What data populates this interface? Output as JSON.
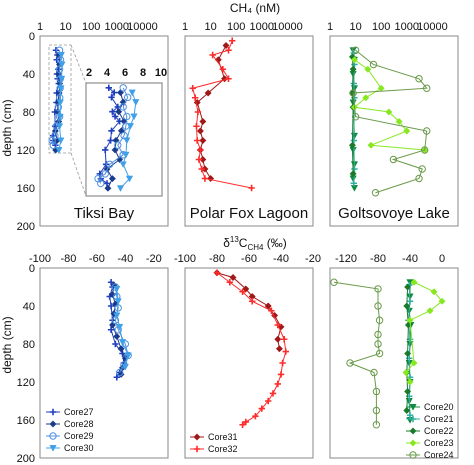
{
  "top_axis_title": "CH₄ (nM)",
  "bottom_axis_title_parts": {
    "delta": "δ",
    "sup": "13",
    "c": "C",
    "sub": "CH4",
    "unit": " (‰)"
  },
  "ylabel": "depth (cm)",
  "panel_titles": [
    "Tiksi Bay",
    "Polar Fox Lagoon",
    "Goltsovoye Lake"
  ],
  "inset_ticks": [
    "2",
    "4",
    "6",
    "8",
    "10"
  ],
  "top_xticks": [
    "1",
    "10",
    "100",
    "1000",
    "10000"
  ],
  "bottom_xticks_left": [
    "-100",
    "-80",
    "-60",
    "-40",
    "-20"
  ],
  "bottom_xticks_mid": [
    "-100",
    "-80",
    "-60",
    "-40",
    "-20"
  ],
  "bottom_xticks_right": [
    "-120",
    "-80",
    "-40",
    "0"
  ],
  "yticks": [
    "0",
    "40",
    "80",
    "120",
    "160",
    "200"
  ],
  "colors": {
    "Core27": "#1f3fbf",
    "Core28": "#1a3a8a",
    "Core29": "#4f8fdf",
    "Core30": "#3fa0e8",
    "Core31": "#a01818",
    "Core32": "#ff2a2a",
    "Core20": "#0e8a3e",
    "Core21": "#2fb0a0",
    "Core22": "#1a7a2a",
    "Core23": "#88e820",
    "Core24": "#6a9a4a"
  },
  "chart_data": [
    {
      "type": "line",
      "title": "Tiksi Bay",
      "xlabel": "CH₄ (nM)",
      "xscale": "log",
      "xlim": [
        1,
        100000
      ],
      "ylabel": "depth (cm)",
      "ylim": [
        200,
        0
      ],
      "series": [
        {
          "name": "Core27",
          "marker": "plus",
          "points": [
            [
              4.2,
              15
            ],
            [
              4.8,
              20
            ],
            [
              4.5,
              25
            ],
            [
              5.2,
              35
            ],
            [
              4.6,
              40
            ],
            [
              4.9,
              45
            ],
            [
              5.4,
              50
            ],
            [
              4.5,
              60
            ],
            [
              4.4,
              70
            ],
            [
              3.8,
              80
            ],
            [
              3.9,
              95
            ],
            [
              3.2,
              105
            ],
            [
              3.3,
              110
            ],
            [
              4.0,
              115
            ]
          ]
        },
        {
          "name": "Core28",
          "marker": "diamond",
          "points": [
            [
              5.5,
              20
            ],
            [
              5.8,
              30
            ],
            [
              5.3,
              40
            ],
            [
              5.9,
              50
            ],
            [
              5.6,
              60
            ],
            [
              5.0,
              70
            ],
            [
              4.9,
              80
            ],
            [
              5.4,
              90
            ],
            [
              4.0,
              100
            ],
            [
              4.6,
              110
            ],
            [
              4.1,
              120
            ]
          ]
        },
        {
          "name": "Core29",
          "marker": "circle",
          "points": [
            [
              5.8,
              15
            ],
            [
              6.3,
              25
            ],
            [
              5.8,
              35
            ],
            [
              6.2,
              45
            ],
            [
              6.1,
              55
            ],
            [
              5.9,
              65
            ],
            [
              5.2,
              75
            ],
            [
              5.8,
              85
            ],
            [
              4.3,
              95
            ],
            [
              3.8,
              105
            ],
            [
              3.0,
              110
            ],
            [
              3.3,
              115
            ]
          ]
        },
        {
          "name": "Core30",
          "marker": "triangle",
          "points": [
            [
              6.8,
              20
            ],
            [
              7.2,
              30
            ],
            [
              7.0,
              45
            ],
            [
              6.6,
              55
            ],
            [
              6.2,
              70
            ],
            [
              6.1,
              85
            ],
            [
              5.8,
              95
            ],
            [
              6.5,
              110
            ],
            [
              5.5,
              120
            ]
          ]
        }
      ]
    },
    {
      "type": "line",
      "title": "Polar Fox Lagoon",
      "xlabel": "CH₄ (nM)",
      "xscale": "log",
      "xlim": [
        1,
        100000
      ],
      "ylabel": "depth (cm)",
      "ylim": [
        200,
        0
      ],
      "series": [
        {
          "name": "Core31",
          "marker": "diamond",
          "points": [
            [
              40,
              10
            ],
            [
              20,
              25
            ],
            [
              35,
              45
            ],
            [
              8,
              60
            ],
            [
              3,
              70
            ],
            [
              5,
              90
            ],
            [
              4,
              100
            ],
            [
              5,
              110
            ],
            [
              4,
              120
            ],
            [
              5,
              130
            ],
            [
              6,
              140
            ],
            [
              10,
              150
            ]
          ]
        },
        {
          "name": "Core32",
          "marker": "plus",
          "points": [
            [
              70,
              5
            ],
            [
              50,
              15
            ],
            [
              12,
              20
            ],
            [
              30,
              35
            ],
            [
              50,
              45
            ],
            [
              2,
              55
            ],
            [
              2.5,
              65
            ],
            [
              3.2,
              80
            ],
            [
              2.8,
              95
            ],
            [
              3,
              110
            ],
            [
              4,
              120
            ],
            [
              3.5,
              130
            ],
            [
              4.5,
              140
            ],
            [
              6,
              150
            ],
            [
              400,
              160
            ]
          ]
        }
      ]
    },
    {
      "type": "line",
      "title": "Goltsovoye Lake",
      "xlabel": "CH₄ (nM)",
      "xscale": "log",
      "xlim": [
        1,
        100000
      ],
      "ylabel": "depth (cm)",
      "ylim": [
        200,
        0
      ],
      "series": [
        {
          "name": "Core20",
          "marker": "triangle",
          "points": [
            [
              8,
              15
            ],
            [
              9,
              25
            ],
            [
              8,
              40
            ],
            [
              9,
              55
            ],
            [
              8,
              70
            ],
            [
              9,
              105
            ],
            [
              8,
              120
            ],
            [
              9,
              135
            ],
            [
              8,
              150
            ],
            [
              9,
              160
            ]
          ]
        },
        {
          "name": "Core21",
          "marker": "plus",
          "points": [
            [
              8.5,
              18
            ],
            [
              9,
              30
            ],
            [
              8.5,
              50
            ],
            [
              9,
              65
            ],
            [
              8.5,
              110
            ],
            [
              9,
              140
            ],
            [
              8.5,
              155
            ]
          ]
        },
        {
          "name": "Core22",
          "marker": "diamond",
          "points": [
            [
              7.5,
              22
            ],
            [
              8,
              35
            ],
            [
              7.5,
              60
            ],
            [
              8,
              75
            ],
            [
              7.5,
              115
            ],
            [
              8,
              145
            ]
          ]
        },
        {
          "name": "Core23",
          "marker": "diamond",
          "points": [
            [
              9,
              25
            ],
            [
              30,
              35
            ],
            [
              100,
              55
            ],
            [
              25,
              65
            ],
            [
              9,
              75
            ],
            [
              200,
              80
            ],
            [
              500,
              90
            ],
            [
              1000,
              100
            ],
            [
              40,
              115
            ],
            [
              5000,
              120
            ]
          ]
        },
        {
          "name": "Core24",
          "marker": "circle",
          "points": [
            [
              10,
              15
            ],
            [
              50,
              30
            ],
            [
              3000,
              45
            ],
            [
              6000,
              55
            ],
            [
              8,
              60
            ],
            [
              10,
              85
            ],
            [
              6000,
              100
            ],
            [
              5000,
              120
            ],
            [
              300,
              130
            ],
            [
              4000,
              140
            ],
            [
              3000,
              150
            ],
            [
              60,
              165
            ]
          ]
        }
      ]
    },
    {
      "type": "line",
      "title": "",
      "xlabel": "δ¹³C-CH4 (‰)",
      "xlim": [
        -100,
        -10
      ],
      "ylabel": "depth (cm)",
      "ylim": [
        200,
        0
      ],
      "series": [
        {
          "name": "Core27",
          "marker": "plus",
          "points": [
            [
              -50,
              15
            ],
            [
              -49,
              20
            ],
            [
              -51,
              30
            ],
            [
              -50,
              40
            ],
            [
              -49,
              55
            ],
            [
              -50,
              65
            ],
            [
              -47,
              80
            ],
            [
              -42,
              90
            ],
            [
              -41,
              100
            ],
            [
              -44,
              110
            ],
            [
              -46,
              115
            ]
          ]
        },
        {
          "name": "Core28",
          "marker": "diamond",
          "points": [
            [
              -48,
              18
            ],
            [
              -49,
              28
            ],
            [
              -47,
              38
            ],
            [
              -48,
              48
            ],
            [
              -49,
              60
            ],
            [
              -46,
              72
            ],
            [
              -43,
              85
            ],
            [
              -40,
              95
            ],
            [
              -42,
              105
            ],
            [
              -43,
              112
            ]
          ]
        },
        {
          "name": "Core29",
          "marker": "circle",
          "points": [
            [
              -47,
              20
            ],
            [
              -46,
              30
            ],
            [
              -45,
              42
            ],
            [
              -47,
              55
            ],
            [
              -45,
              65
            ],
            [
              -40,
              80
            ],
            [
              -38,
              92
            ],
            [
              -41,
              102
            ],
            [
              -44,
              110
            ]
          ]
        },
        {
          "name": "Core30",
          "marker": "triangle",
          "points": [
            [
              -46,
              22
            ],
            [
              -45,
              35
            ],
            [
              -46,
              50
            ],
            [
              -44,
              62
            ],
            [
              -42,
              78
            ],
            [
              -38,
              92
            ],
            [
              -40,
              104
            ]
          ]
        }
      ]
    },
    {
      "type": "line",
      "title": "",
      "xlabel": "δ¹³C-CH4 (‰)",
      "xlim": [
        -100,
        -20
      ],
      "ylabel": "depth (cm)",
      "ylim": [
        200,
        0
      ],
      "series": [
        {
          "name": "Core31",
          "marker": "diamond",
          "points": [
            [
              -80,
              5
            ],
            [
              -70,
              10
            ],
            [
              -62,
              22
            ],
            [
              -58,
              30
            ],
            [
              -48,
              40
            ],
            [
              -44,
              50
            ],
            [
              -40,
              62
            ],
            [
              -42,
              75
            ],
            [
              -41,
              85
            ]
          ]
        },
        {
          "name": "Core32",
          "marker": "plus",
          "points": [
            [
              -80,
              5
            ],
            [
              -72,
              15
            ],
            [
              -64,
              25
            ],
            [
              -58,
              35
            ],
            [
              -46,
              45
            ],
            [
              -42,
              60
            ],
            [
              -38,
              75
            ],
            [
              -37,
              88
            ],
            [
              -39,
              100
            ],
            [
              -40,
              112
            ],
            [
              -42,
              122
            ],
            [
              -45,
              132
            ],
            [
              -48,
              140
            ],
            [
              -52,
              148
            ],
            [
              -56,
              156
            ],
            [
              -62,
              162
            ],
            [
              -64,
              165
            ]
          ]
        }
      ]
    },
    {
      "type": "line",
      "title": "",
      "xlabel": "δ¹³C-CH4 (‰)",
      "xlim": [
        -140,
        20
      ],
      "ylabel": "depth (cm)",
      "ylim": [
        200,
        0
      ],
      "series": [
        {
          "name": "Core20",
          "marker": "triangle",
          "points": [
            [
              -40,
              15
            ],
            [
              -40,
              30
            ],
            [
              -41,
              45
            ],
            [
              -39,
              60
            ],
            [
              -40,
              80
            ],
            [
              -41,
              100
            ],
            [
              -40,
              120
            ],
            [
              -41,
              140
            ],
            [
              -40,
              160
            ]
          ]
        },
        {
          "name": "Core21",
          "marker": "plus",
          "points": [
            [
              -41,
              18
            ],
            [
              -40,
              35
            ],
            [
              -42,
              55
            ],
            [
              -40,
              75
            ],
            [
              -41,
              95
            ],
            [
              -40,
              115
            ],
            [
              -41,
              135
            ],
            [
              -40,
              155
            ]
          ]
        },
        {
          "name": "Core22",
          "marker": "diamond",
          "points": [
            [
              -43,
              20
            ],
            [
              -44,
              40
            ],
            [
              -42,
              60
            ],
            [
              -43,
              90
            ],
            [
              -44,
              110
            ],
            [
              -43,
              130
            ],
            [
              -44,
              150
            ]
          ]
        },
        {
          "name": "Core23",
          "marker": "diamond",
          "points": [
            [
              -35,
              15
            ],
            [
              -10,
              25
            ],
            [
              0,
              35
            ],
            [
              -15,
              45
            ],
            [
              -40,
              55
            ],
            [
              -35,
              100
            ],
            [
              -45,
              110
            ],
            [
              -40,
              120
            ]
          ]
        },
        {
          "name": "Core24",
          "marker": "circle",
          "points": [
            [
              -135,
              15
            ],
            [
              -80,
              22
            ],
            [
              -80,
              40
            ],
            [
              -78,
              55
            ],
            [
              -80,
              70
            ],
            [
              -80,
              80
            ],
            [
              -78,
              90
            ],
            [
              -115,
              100
            ],
            [
              -85,
              110
            ],
            [
              -82,
              130
            ],
            [
              -82,
              150
            ],
            [
              -82,
              165
            ]
          ]
        }
      ]
    }
  ]
}
